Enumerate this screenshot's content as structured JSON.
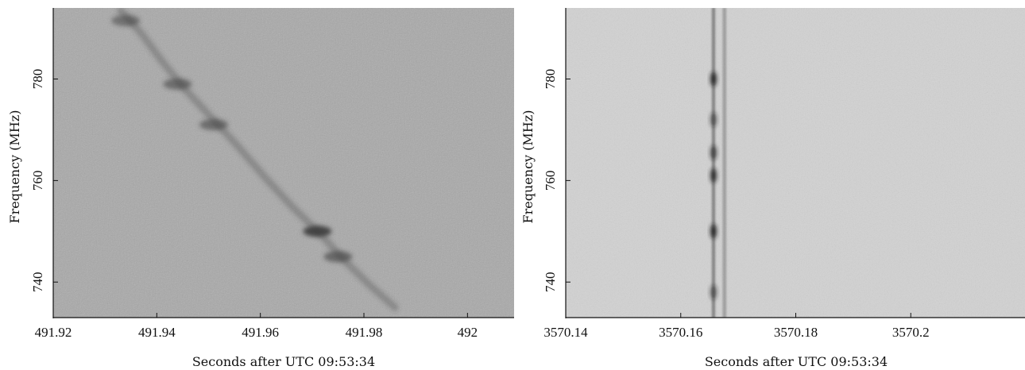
{
  "chart_data": [
    {
      "type": "heatmap",
      "subtype": "dynamic-spectrum",
      "colormap": "grayscale",
      "background_color": "#a8a8a8",
      "signal_color": "#3a3a3a",
      "xlabel": "Seconds after UTC 09:53:34",
      "ylabel": "Frequency (MHz)",
      "xlim": [
        491.92,
        492.009
      ],
      "ylim": [
        733,
        794
      ],
      "xticks": [
        491.92,
        491.94,
        491.96,
        491.98,
        492
      ],
      "xtick_labels": [
        "491.92",
        "491.94",
        "491.96",
        "491.98",
        "492"
      ],
      "yticks": [
        740,
        760,
        780
      ],
      "ytick_labels": [
        "740",
        "760",
        "780"
      ],
      "features": [
        {
          "kind": "dispersed-sweep",
          "points": [
            {
              "x": 491.933,
              "y": 793.5
            },
            {
              "x": 491.937,
              "y": 789.0
            },
            {
              "x": 491.941,
              "y": 783.5
            },
            {
              "x": 491.945,
              "y": 778.5
            },
            {
              "x": 491.95,
              "y": 773.0
            },
            {
              "x": 491.955,
              "y": 767.5
            },
            {
              "x": 491.961,
              "y": 760.5
            },
            {
              "x": 491.966,
              "y": 755.0
            },
            {
              "x": 491.972,
              "y": 749.0
            },
            {
              "x": 491.976,
              "y": 744.5
            },
            {
              "x": 491.981,
              "y": 739.5
            },
            {
              "x": 491.986,
              "y": 735.0
            }
          ]
        },
        {
          "kind": "bright-clump",
          "x": 491.971,
          "y": 750.0,
          "intensity": 0.9
        },
        {
          "kind": "bright-clump",
          "x": 491.975,
          "y": 745.0,
          "intensity": 0.6
        },
        {
          "kind": "bright-clump",
          "x": 491.944,
          "y": 779.0,
          "intensity": 0.55
        },
        {
          "kind": "bright-clump",
          "x": 491.951,
          "y": 771.0,
          "intensity": 0.55
        },
        {
          "kind": "bright-clump",
          "x": 491.934,
          "y": 791.5,
          "intensity": 0.5
        }
      ]
    },
    {
      "type": "heatmap",
      "subtype": "dynamic-spectrum",
      "colormap": "grayscale",
      "background_color": "#d2d2d2",
      "signal_color": "#1e1e1e",
      "xlabel": "Seconds after UTC 09:53:34",
      "ylabel": "Frequency (MHz)",
      "xlim": [
        3570.14,
        3570.22
      ],
      "ylim": [
        733,
        794
      ],
      "xticks": [
        3570.14,
        3570.16,
        3570.18,
        3570.2
      ],
      "xtick_labels": [
        "3570.14",
        "3570.16",
        "3570.18",
        "3570.2"
      ],
      "yticks": [
        740,
        760,
        780
      ],
      "ytick_labels": [
        "740",
        "760",
        "780"
      ],
      "features": [
        {
          "kind": "vertical-band",
          "x": 3570.1657,
          "intensity": 0.45
        },
        {
          "kind": "vertical-band",
          "x": 3570.1676,
          "intensity": 0.3
        },
        {
          "kind": "bright-clump",
          "x": 3570.1657,
          "y": 780.0,
          "intensity": 0.9
        },
        {
          "kind": "bright-clump",
          "x": 3570.1657,
          "y": 772.0,
          "intensity": 0.6
        },
        {
          "kind": "bright-clump",
          "x": 3570.1657,
          "y": 765.5,
          "intensity": 0.7
        },
        {
          "kind": "bright-clump",
          "x": 3570.1657,
          "y": 761.0,
          "intensity": 0.85
        },
        {
          "kind": "bright-clump",
          "x": 3570.1657,
          "y": 750.0,
          "intensity": 0.9
        },
        {
          "kind": "bright-clump",
          "x": 3570.1657,
          "y": 738.0,
          "intensity": 0.6
        }
      ]
    }
  ]
}
